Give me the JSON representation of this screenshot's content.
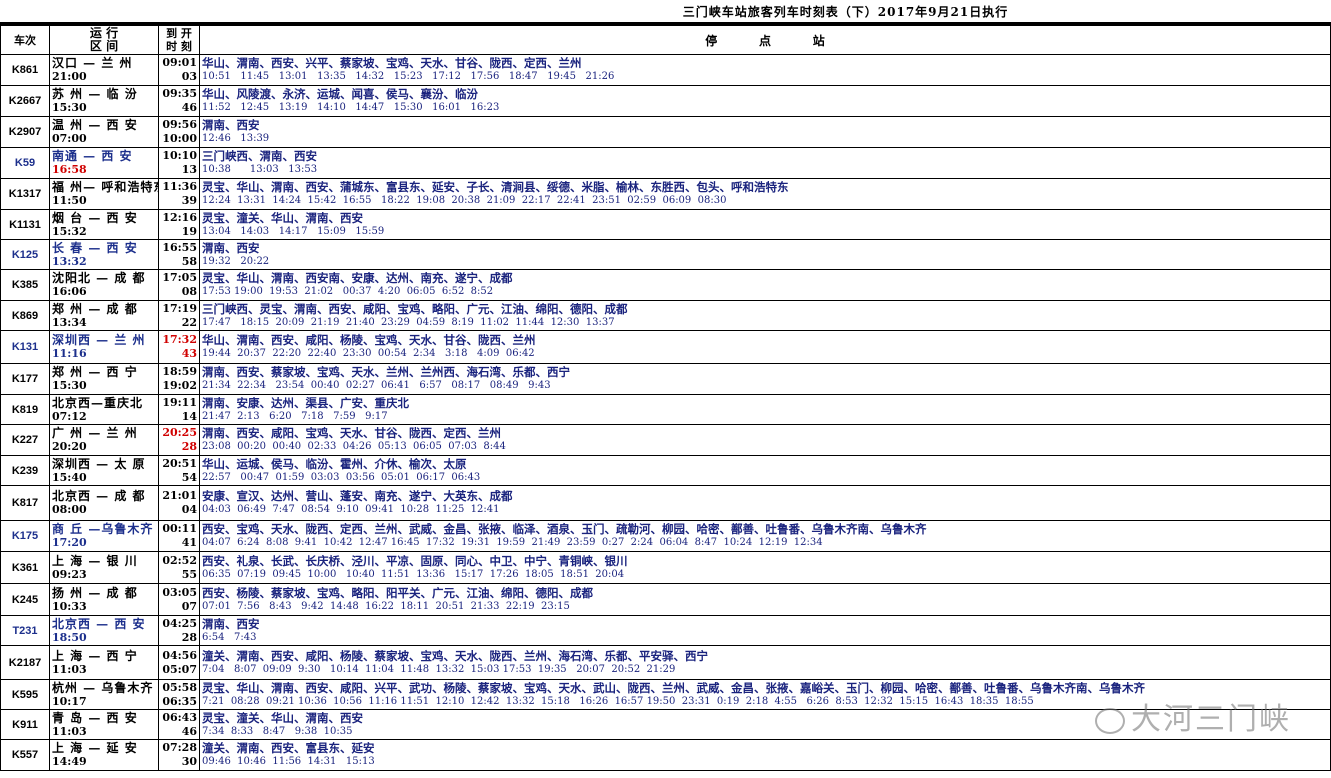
{
  "title": "三门峡车站旅客列车时刻表（下）2017年9月21日执行",
  "headers": {
    "train": "车次",
    "route_top": "运 行",
    "route_bottom": "区 间",
    "time_top": "到 开",
    "time_bottom": "时 刻",
    "stops": "停          点          站"
  },
  "rows": [
    {
      "train": "K861",
      "route": "汉口 — 兰 州",
      "dep": "21:00",
      "t1": "09:01",
      "t2": "03",
      "stops": "华山、渭南、西安、兴平、蔡家坡、宝鸡、天水、甘谷、陇西、定西、兰州",
      "times": "10:51   11:45   13:01   13:35   14:32   15:23   17:12   17:56   18:47   19:45   21:26"
    },
    {
      "train": "K2667",
      "route": "苏 州 — 临 汾",
      "dep": "15:30",
      "t1": "09:35",
      "t2": "46",
      "stops": "华山、风陵渡、永济、运城、闻喜、侯马、襄汾、临汾",
      "times": "11:52   12:45   13:19   14:10   14:47   15:30   16:01   16:23"
    },
    {
      "train": "K2907",
      "route": "温 州 — 西 安",
      "dep": "07:00",
      "t1": "09:56",
      "t2": "10:00",
      "stops": "渭南、西安",
      "times": "12:46   13:39"
    },
    {
      "train": "K59",
      "route": "南通 — 西 安",
      "dep": "16:58",
      "t1": "10:10",
      "t2": "13",
      "stops": "三门峡西、渭南、西安",
      "times": "10:38      13:03   13:53",
      "blue": true,
      "depRed": true
    },
    {
      "train": "K1317",
      "route": "福 州— 呼和浩特东",
      "dep": "11:50",
      "t1": "11:36",
      "t2": "39",
      "stops": "灵宝、华山、渭南、西安、蒲城东、富县东、延安、子长、清涧县、绥德、米脂、榆林、东胜西、包头、呼和浩特东",
      "times": "12:24  13:31  14:24  15:42  16:55   18:22  19:08  20:38  21:09  22:17  22:41  23:51  02:59  06:09  08:30"
    },
    {
      "train": "K1131",
      "route": "烟 台 — 西 安",
      "dep": "15:32",
      "t1": "12:16",
      "t2": "19",
      "stops": "灵宝、潼关、华山、渭南、西安",
      "times": "13:04   14:03   14:17   15:09   15:59"
    },
    {
      "train": "K125",
      "route": "长 春 — 西 安",
      "dep": "13:32",
      "t1": "16:55",
      "t2": "58",
      "stops": "渭南、西安",
      "times": "19:32   20:22",
      "blue": true
    },
    {
      "train": "K385",
      "route": "沈阳北 — 成 都",
      "dep": "16:06",
      "t1": "17:05",
      "t2": "08",
      "stops": "灵宝、华山、渭南、西安南、安康、达州、南充、遂宁、成都",
      "times": "17:53 19:00  19:53  21:02   00:37  4:20  06:05  6:52  8:52"
    },
    {
      "train": "K869",
      "route": "郑 州 — 成 都",
      "dep": "13:34",
      "t1": "17:19",
      "t2": "22",
      "stops": "三门峡西、灵宝、渭南、西安、咸阳、宝鸡、略阳、广元、江油、绵阳、德阳、成都",
      "times": "17:47   18:15  20:09  21:19  21:40  23:29  04:59  8:19  11:02  11:44  12:30  13:37"
    },
    {
      "train": "K131",
      "route": "深圳西 — 兰 州",
      "dep": "11:16",
      "t1": "17:32",
      "t2": "43",
      "stops": "华山、渭南、西安、咸阳、杨陵、宝鸡、天水、甘谷、陇西、兰州",
      "times": "19:44  20:37  22:20  22:40  23:30  00:54  2:34   3:18   4:09  06:42",
      "blue": true,
      "timeRed": true
    },
    {
      "train": "K177",
      "route": "郑 州 — 西 宁",
      "dep": "15:30",
      "t1": "18:59",
      "t2": "19:02",
      "stops": "渭南、西安、蔡家坡、宝鸡、天水、兰州、兰州西、海石湾、乐都、西宁",
      "times": "21:34  22:34   23:54  00:40  02:27  06:41   6:57   08:17   08:49   9:43"
    },
    {
      "train": "K819",
      "route": "北京西—重庆北",
      "dep": "07:12",
      "t1": "19:11",
      "t2": "14",
      "stops": "渭南、安康、达州、渠县、广安、重庆北",
      "times": "21:47  2:13   6:20   7:18   7:59   9:17"
    },
    {
      "train": "K227",
      "route": "广 州 — 兰 州",
      "dep": "20:20",
      "t1": "20:25",
      "t2": "28",
      "stops": "渭南、西安、咸阳、宝鸡、天水、甘谷、陇西、定西、兰州",
      "times": "23:08  00:20  00:40  02:33  04:26  05:13  06:05  07:03  8:44",
      "timeRed": true
    },
    {
      "train": "K239",
      "route": "深圳西 — 太 原",
      "dep": "15:40",
      "t1": "20:51",
      "t2": "54",
      "stops": "华山、运城、侯马、临汾、霍州、介休、榆次、太原",
      "times": "22:57   00:47  01:59  03:03  03:56  05:01  06:17  06:43"
    },
    {
      "train": "K817",
      "route": "北京西 — 成 都",
      "dep": "08:00",
      "t1": "21:01",
      "t2": "04",
      "stops": "安康、宣汉、达州、营山、蓬安、南充、遂宁、大英东、成都",
      "times": "04:03  06:49  7:47  08:54  9:10  09:41  10:28  11:25  12:41"
    },
    {
      "train": "K175",
      "route": "商 丘 —乌鲁木齐",
      "dep": "17:20",
      "t1": "00:11",
      "t2": "41",
      "stops": "西安、宝鸡、天水、陇西、定西、兰州、武威、金昌、张掖、临泽、酒泉、玉门、疏勒河、柳园、哈密、鄯善、吐鲁番、乌鲁木齐南、乌鲁木齐",
      "times": "04:07  6:24  8:08  9:41  10:42  12:47 16:45  17:32  19:31  19:59  21:49  23:59  0:27  2:24  06:04  8:47  10:24  12:19  12:34",
      "blue": true
    },
    {
      "train": "K361",
      "route": "上 海 — 银 川",
      "dep": "09:23",
      "t1": "02:52",
      "t2": "55",
      "stops": "西安、礼泉、长武、长庆桥、泾川、平凉、固原、同心、中卫、中宁、青铜峡、银川",
      "times": "06:35  07:19  09:45  10:00   10:40  11:51  13:36   15:17  17:26  18:05  18:51  20:04"
    },
    {
      "train": "K245",
      "route": "扬 州 — 成 都",
      "dep": "10:33",
      "t1": "03:05",
      "t2": "07",
      "stops": "西安、杨陵、蔡家坡、宝鸡、略阳、阳平关、广元、江油、绵阳、德阳、成都",
      "times": "07:01  7:56   8:43   9:42  14:48  16:22  18:11  20:51  21:33  22:19  23:15"
    },
    {
      "train": "T231",
      "route": "北京西 — 西 安",
      "dep": "18:50",
      "t1": "04:25",
      "t2": "28",
      "stops": "渭南、西安",
      "times": "6:54   7:43",
      "blue": true
    },
    {
      "train": "K2187",
      "route": "上 海 — 西 宁",
      "dep": "11:03",
      "t1": "04:56",
      "t2": "05:07",
      "stops": "潼关、渭南、西安、咸阳、杨陵、蔡家坡、宝鸡、天水、陇西、兰州、海石湾、乐都、平安驿、西宁",
      "times": "7:04   8:07  09:09  9:30   10:14  11:04  11:48  13:32  15:03 17:53  19:35   20:07  20:52  21:29"
    },
    {
      "train": "K595",
      "route": "杭州 — 乌鲁木齐",
      "dep": "10:17",
      "t1": "05:58",
      "t2": "06:35",
      "stops": "灵宝、华山、渭南、西安、咸阳、兴平、武功、杨陵、蔡家坡、宝鸡、天水、武山、陇西、兰州、武威、金昌、张掖、嘉峪关、玉门、柳园、哈密、鄯善、吐鲁番、乌鲁木齐南、乌鲁木齐",
      "times": "7:21  08:28  09:21 10:36  10:56  11:16 11:51  12:10  12:42  13:32  15:18   16:26  16:57 19:50  23:31  0:19  2:18  4:55   6:26  8:53  12:32  15:15  16:43  18:35  18:55"
    },
    {
      "train": "K911",
      "route": "青 岛 — 西 安",
      "dep": "11:03",
      "t1": "06:43",
      "t2": "46",
      "stops": "灵宝、潼关、华山、渭南、西安",
      "times": "7:34  8:33   8:47   9:38  10:35"
    },
    {
      "train": "K557",
      "route": "上 海 — 延 安",
      "dep": "14:49",
      "t1": "07:28",
      "t2": "30",
      "stops": "潼关、渭南、西安、富县东、延安",
      "times": "09:46  10:46  11:56  14:31   15:13"
    }
  ],
  "watermark": "大河三门峡"
}
